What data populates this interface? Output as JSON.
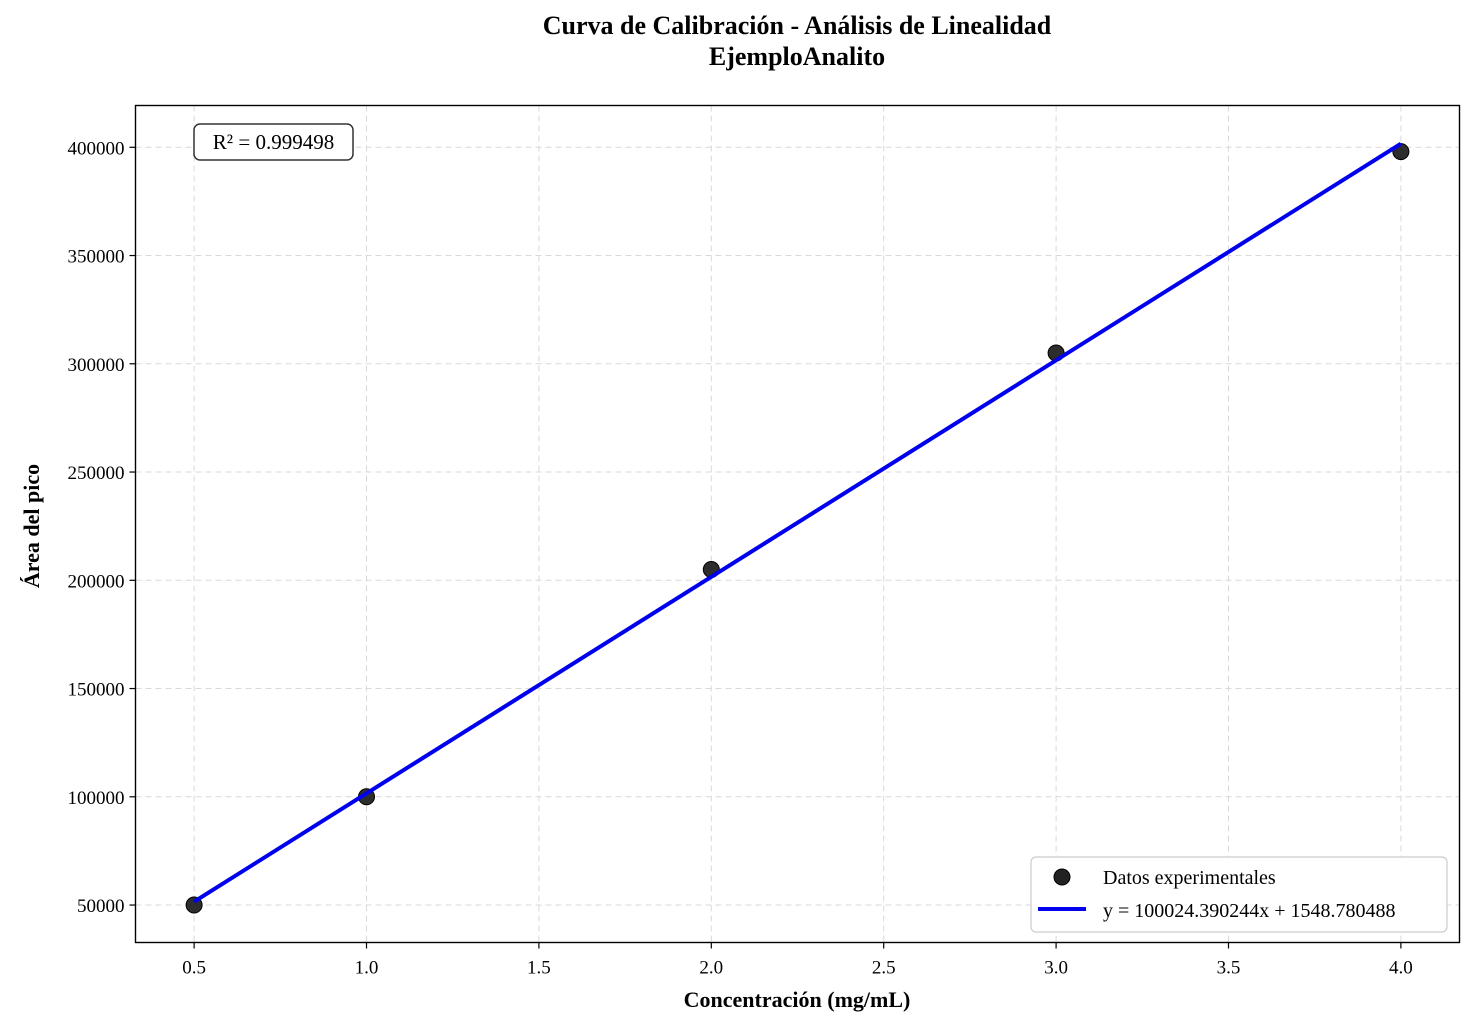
{
  "chart_data": {
    "type": "scatter",
    "title": "Curva de Calibración - Análisis de Linealidad",
    "subtitle": "EjemploAnalito",
    "xlabel": "Concentración (mg/mL)",
    "ylabel": "Área del pico",
    "xlim": [
      0.33,
      4.17
    ],
    "ylim": [
      32700,
      419300
    ],
    "xticks": [
      0.5,
      1.0,
      1.5,
      2.0,
      2.5,
      3.0,
      3.5,
      4.0
    ],
    "xtick_labels": [
      "0.5",
      "1.0",
      "1.5",
      "2.0",
      "2.5",
      "3.0",
      "3.5",
      "4.0"
    ],
    "yticks": [
      50000,
      100000,
      150000,
      200000,
      250000,
      300000,
      350000,
      400000
    ],
    "ytick_labels": [
      "50000",
      "100000",
      "150000",
      "200000",
      "250000",
      "300000",
      "350000",
      "400000"
    ],
    "grid": true,
    "series": [
      {
        "name": "Datos experimentales",
        "type": "scatter",
        "color": "#222222",
        "x": [
          0.5,
          1.0,
          2.0,
          3.0,
          4.0
        ],
        "y": [
          50000,
          100000,
          205000,
          305000,
          398000
        ]
      },
      {
        "name": "y = 100024.390244x + 1548.780488",
        "type": "line",
        "color": "#0000ee",
        "slope": 100024.390244,
        "intercept": 1548.780488,
        "x": [
          0.5,
          4.0
        ]
      }
    ],
    "annotation": "R² = 0.999498",
    "legend_position": "lower-right"
  }
}
